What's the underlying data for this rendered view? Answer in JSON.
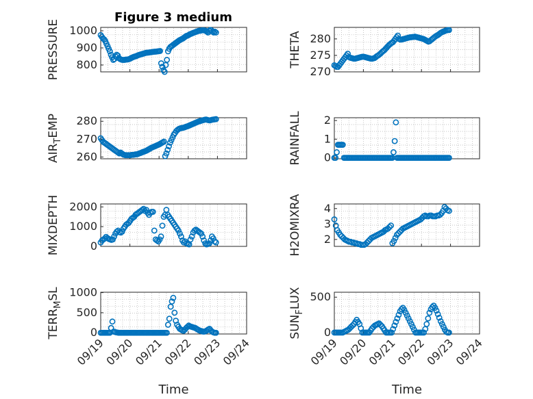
{
  "figure": {
    "title": "Figure 3 medium"
  },
  "chart_data": [
    {
      "type": "scatter",
      "ylabel": "PRESSURE",
      "xlim": [
        "09/19",
        "09/24"
      ],
      "ylim": [
        760,
        1020
      ],
      "yticks": [
        800,
        900,
        1000
      ],
      "grid": true,
      "x_start": "09/19",
      "y": [
        975,
        965,
        955,
        950,
        940,
        925,
        910,
        895,
        880,
        860,
        845,
        830,
        835,
        850,
        860,
        855,
        840,
        835,
        832,
        830,
        830,
        830,
        832,
        832,
        833,
        835,
        838,
        842,
        845,
        848,
        850,
        852,
        855,
        858,
        860,
        862,
        864,
        866,
        868,
        870,
        872,
        872,
        873,
        874,
        875,
        876,
        877,
        878,
        878,
        879,
        880,
        881,
        882,
        810,
        790,
        770,
        760,
        800,
        830,
        880,
        895,
        905,
        910,
        915,
        920,
        925,
        930,
        935,
        940,
        945,
        948,
        952,
        955,
        960,
        965,
        970,
        972,
        975,
        980,
        982,
        985,
        988,
        990,
        993,
        995,
        998,
        1000,
        1000,
        1002,
        1003,
        1003,
        1002,
        1000,
        995,
        990,
        1000,
        1005,
        1003,
        995,
        990,
        995,
        990
      ]
    },
    {
      "type": "scatter",
      "ylabel": "THETA",
      "xlim": [
        "09/19",
        "09/24"
      ],
      "ylim": [
        270,
        283.5
      ],
      "yticks": [
        270,
        275,
        280
      ],
      "grid": true,
      "x_start": "09/19",
      "y": [
        272,
        271.8,
        271.5,
        271.5,
        272,
        272.5,
        273,
        273.5,
        274,
        274.5,
        275,
        275.5,
        274.5,
        274.3,
        274.2,
        274.1,
        274,
        274,
        274.1,
        274.2,
        274.3,
        274.4,
        274.5,
        274.6,
        274.6,
        274.5,
        274.4,
        274.3,
        274.2,
        274.1,
        274,
        274,
        274.1,
        274.2,
        274.5,
        274.8,
        275,
        275.3,
        275.6,
        276,
        276.3,
        276.6,
        277,
        277.4,
        277.8,
        278.2,
        278.5,
        278.8,
        279,
        279.5,
        280,
        280.5,
        281,
        280,
        279.8,
        279.8,
        279.9,
        280,
        280.1,
        280.2,
        280.3,
        280.4,
        280.5,
        280.5,
        280.6,
        280.6,
        280.7,
        280.6,
        280.5,
        280.4,
        280.3,
        280.2,
        280.1,
        280,
        279.8,
        279.6,
        279.4,
        279.2,
        279.3,
        279.6,
        279.9,
        280.2,
        280.5,
        280.8,
        281,
        281.2,
        281.5,
        281.8,
        282,
        282.2,
        282.3,
        282.5,
        282.6,
        282.7,
        282.7
      ]
    },
    {
      "type": "scatter",
      "ylabel": "AIR_TEMP",
      "xlim": [
        "09/19",
        "09/24"
      ],
      "ylim": [
        259,
        282
      ],
      "yticks": [
        260,
        270,
        280
      ],
      "grid": true,
      "x_start": "09/19",
      "y": [
        270.5,
        269.5,
        268.5,
        268,
        267.5,
        267,
        266.5,
        266,
        265.5,
        265,
        264.5,
        264,
        263.5,
        263,
        262.5,
        262,
        262.5,
        262,
        261.5,
        261.2,
        261,
        261,
        261,
        261,
        261,
        261.2,
        261.2,
        261.3,
        261.5,
        261.5,
        261.7,
        262,
        262.2,
        262.5,
        262.8,
        263,
        263.3,
        263.6,
        264,
        264.4,
        264.8,
        265.2,
        265.5,
        265.8,
        266.1,
        266.4,
        266.7,
        267,
        267.4,
        267.8,
        268.2,
        268.6,
        260.5,
        262,
        264,
        266,
        268,
        269.5,
        271,
        272.5,
        273.5,
        274.5,
        275.2,
        275.7,
        276,
        276.2,
        276.3,
        276.5,
        276.7,
        277,
        277.2,
        277.5,
        277.8,
        278.1,
        278.4,
        278.7,
        279,
        279.3,
        279.6,
        279.9,
        280.1,
        280.3,
        280.5,
        280.7,
        280.9,
        281,
        280.8,
        280.6,
        280.5,
        280.7,
        280.9,
        281,
        281.1,
        281.2
      ]
    },
    {
      "type": "scatter",
      "ylabel": "RAINFALL",
      "xlim": [
        "09/19",
        "09/24"
      ],
      "ylim": [
        -0.05,
        2.15
      ],
      "yticks": [
        0,
        1,
        2
      ],
      "grid": true,
      "x_start": "09/19",
      "y": [
        0,
        0,
        0.3,
        0.7,
        0.7,
        0.7,
        0.7,
        0.7,
        0,
        0,
        0,
        0,
        0,
        0,
        0,
        0,
        0,
        0,
        0,
        0,
        0,
        0,
        0,
        0,
        0,
        0,
        0,
        0,
        0,
        0,
        0,
        0,
        0,
        0,
        0,
        0,
        0,
        0,
        0,
        0,
        0,
        0,
        0,
        0,
        0,
        0,
        0,
        0,
        0,
        0.3,
        0.9,
        1.9,
        0,
        0,
        0,
        0,
        0,
        0,
        0,
        0,
        0,
        0,
        0,
        0,
        0,
        0,
        0,
        0,
        0,
        0,
        0,
        0,
        0,
        0,
        0,
        0,
        0,
        0,
        0,
        0,
        0,
        0,
        0,
        0,
        0,
        0,
        0,
        0,
        0,
        0,
        0,
        0,
        0,
        0,
        0,
        0
      ]
    },
    {
      "type": "scatter",
      "ylabel": "MIXDEPTH",
      "xlim": [
        "09/19",
        "09/24"
      ],
      "ylim": [
        0,
        2150
      ],
      "yticks": [
        0,
        1000,
        2000
      ],
      "grid": true,
      "x_start": "09/19",
      "y": [
        200,
        300,
        350,
        400,
        480,
        420,
        380,
        350,
        330,
        350,
        500,
        650,
        750,
        800,
        720,
        700,
        750,
        900,
        1000,
        1100,
        1150,
        1200,
        1300,
        1400,
        1450,
        1500,
        1600,
        1650,
        1700,
        1750,
        1800,
        1850,
        1900,
        1800,
        1850,
        1700,
        1600,
        1700,
        1750,
        1750,
        800,
        350,
        300,
        250,
        350,
        500,
        1050,
        1500,
        1600,
        1850,
        1600,
        1500,
        1400,
        1300,
        1200,
        1100,
        1000,
        900,
        800,
        650,
        500,
        300,
        200,
        250,
        150,
        120,
        100,
        350,
        500,
        700,
        800,
        850,
        800,
        750,
        700,
        650,
        500,
        300,
        150,
        100,
        120,
        150,
        300,
        500,
        400,
        250,
        200
      ]
    },
    {
      "type": "scatter",
      "ylabel": "H2OMIXRA",
      "xlim": [
        "09/19",
        "09/24"
      ],
      "ylim": [
        1.55,
        4.3
      ],
      "yticks": [
        2,
        3,
        4
      ],
      "grid": true,
      "x_start": "09/19",
      "y": [
        3.3,
        2.9,
        2.6,
        2.45,
        2.3,
        2.2,
        2.1,
        2,
        1.95,
        1.9,
        1.85,
        1.85,
        1.8,
        1.8,
        1.75,
        1.75,
        1.7,
        1.7,
        1.65,
        1.65,
        1.65,
        1.7,
        1.8,
        1.9,
        2,
        2.1,
        2.15,
        2.2,
        2.25,
        2.3,
        2.35,
        2.4,
        2.45,
        2.5,
        2.6,
        2.65,
        2.7,
        2.8,
        2.9,
        1.75,
        1.9,
        2.1,
        2.3,
        2.4,
        2.5,
        2.6,
        2.7,
        2.75,
        2.8,
        2.85,
        2.9,
        2.95,
        3,
        3.05,
        3.1,
        3.15,
        3.2,
        3.25,
        3.3,
        3.4,
        3.5,
        3.55,
        3.5,
        3.5,
        3.55,
        3.55,
        3.5,
        3.5,
        3.5,
        3.55,
        3.55,
        3.6,
        3.7,
        3.85,
        4.1,
        4,
        3.9,
        3.85
      ]
    },
    {
      "type": "scatter",
      "ylabel": "TERR_MSL",
      "xlim": [
        "09/19",
        "09/24"
      ],
      "ylim": [
        -30,
        1010
      ],
      "yticks": [
        0,
        500,
        1000
      ],
      "grid": true,
      "x_start": "09/19",
      "y": [
        0,
        0,
        0,
        0,
        0,
        0,
        0,
        0,
        120,
        280,
        30,
        20,
        10,
        5,
        0,
        0,
        0,
        0,
        0,
        0,
        0,
        0,
        0,
        0,
        0,
        0,
        0,
        0,
        0,
        0,
        0,
        0,
        0,
        0,
        0,
        0,
        0,
        0,
        0,
        0,
        0,
        0,
        0,
        0,
        0,
        0,
        0,
        0,
        0,
        0,
        0,
        0,
        200,
        350,
        650,
        780,
        870,
        500,
        300,
        200,
        150,
        100,
        80,
        60,
        50,
        80,
        120,
        150,
        180,
        160,
        150,
        140,
        130,
        120,
        100,
        80,
        60,
        50,
        40,
        30,
        30,
        40,
        60,
        80,
        100,
        60,
        30,
        10,
        0,
        0
      ]
    },
    {
      "type": "scatter",
      "ylabel": "SUN_FLUX",
      "xlim": [
        "09/19",
        "09/24"
      ],
      "ylim": [
        -20,
        570
      ],
      "yticks": [
        0,
        500
      ],
      "grid": true,
      "x_start": "09/19",
      "y": [
        0,
        0,
        0,
        0,
        0,
        0,
        0,
        10,
        20,
        30,
        40,
        60,
        80,
        100,
        120,
        150,
        180,
        150,
        120,
        60,
        0,
        0,
        0,
        0,
        0,
        0,
        30,
        60,
        80,
        100,
        110,
        120,
        130,
        110,
        90,
        60,
        30,
        0,
        0,
        0,
        0,
        0,
        50,
        100,
        150,
        200,
        250,
        300,
        330,
        350,
        320,
        280,
        240,
        200,
        160,
        120,
        80,
        40,
        0,
        0,
        0,
        0,
        0,
        0,
        0,
        50,
        120,
        200,
        280,
        330,
        360,
        380,
        350,
        310,
        260,
        210,
        160,
        120,
        80,
        40,
        10,
        0,
        0
      ]
    }
  ],
  "xticks": [
    "09/19",
    "09/20",
    "09/21",
    "09/22",
    "09/23",
    "09/24"
  ],
  "xlabel": "Time",
  "colors": {
    "marker": "#0072BD",
    "axis": "#262626",
    "grid": "#b0b0b0"
  }
}
